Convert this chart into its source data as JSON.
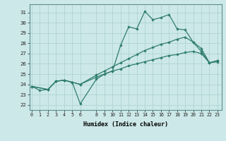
{
  "xlabel": "Humidex (Indice chaleur)",
  "ylabel": "",
  "bg_color": "#cde8e8",
  "grid_color": "#aacfcf",
  "line_color": "#2e7d6e",
  "x_ticks": [
    0,
    1,
    2,
    3,
    4,
    5,
    6,
    8,
    9,
    10,
    11,
    12,
    13,
    14,
    15,
    16,
    17,
    18,
    19,
    20,
    21,
    22,
    23
  ],
  "y_ticks": [
    22,
    23,
    24,
    25,
    26,
    27,
    28,
    29,
    30,
    31
  ],
  "ylim": [
    21.5,
    31.8
  ],
  "xlim": [
    -0.3,
    23.5
  ],
  "line1": {
    "x": [
      0,
      1,
      2,
      3,
      4,
      5,
      6,
      8,
      9,
      10,
      11,
      12,
      13,
      14,
      15,
      16,
      17,
      18,
      19,
      20,
      21,
      22,
      23
    ],
    "y": [
      23.8,
      23.4,
      23.5,
      24.3,
      24.4,
      24.2,
      22.1,
      24.5,
      25.0,
      25.3,
      27.8,
      29.6,
      29.4,
      31.1,
      30.3,
      30.5,
      30.8,
      29.4,
      29.3,
      28.1,
      27.2,
      26.1,
      26.2
    ]
  },
  "line2": {
    "x": [
      0,
      2,
      3,
      4,
      5,
      6,
      8,
      9,
      10,
      11,
      12,
      13,
      14,
      15,
      16,
      17,
      18,
      19,
      20,
      21,
      22,
      23
    ],
    "y": [
      23.8,
      23.5,
      24.3,
      24.4,
      24.2,
      24.0,
      24.9,
      25.3,
      25.7,
      26.1,
      26.5,
      26.9,
      27.3,
      27.6,
      27.9,
      28.1,
      28.4,
      28.6,
      28.1,
      27.5,
      26.1,
      26.3
    ]
  },
  "line3": {
    "x": [
      0,
      2,
      3,
      4,
      5,
      6,
      8,
      9,
      10,
      11,
      12,
      13,
      14,
      15,
      16,
      17,
      18,
      19,
      20,
      21,
      22,
      23
    ],
    "y": [
      23.8,
      23.5,
      24.3,
      24.4,
      24.2,
      24.0,
      24.7,
      25.0,
      25.3,
      25.5,
      25.8,
      26.0,
      26.2,
      26.4,
      26.6,
      26.8,
      26.9,
      27.1,
      27.2,
      27.0,
      26.1,
      26.3
    ]
  }
}
